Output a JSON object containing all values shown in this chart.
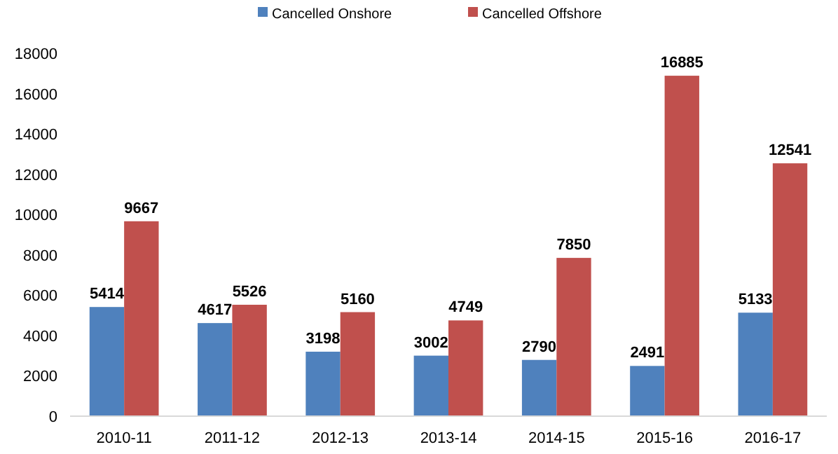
{
  "chart_data": {
    "type": "bar",
    "categories": [
      "2010-11",
      "2011-12",
      "2012-13",
      "2013-14",
      "2014-15",
      "2015-16",
      "2016-17"
    ],
    "series": [
      {
        "name": "Cancelled Onshore",
        "color": "#4f81bd",
        "values": [
          5414,
          4617,
          3198,
          3002,
          2790,
          2491,
          5133
        ]
      },
      {
        "name": "Cancelled Offshore",
        "color": "#c0504d",
        "values": [
          9667,
          5526,
          5160,
          4749,
          7850,
          16885,
          12541
        ]
      }
    ],
    "ylim": [
      0,
      18000
    ],
    "yticks": [
      0,
      2000,
      4000,
      6000,
      8000,
      10000,
      12000,
      14000,
      16000,
      18000
    ],
    "grid": false,
    "legend": "top",
    "data_labels": true
  }
}
